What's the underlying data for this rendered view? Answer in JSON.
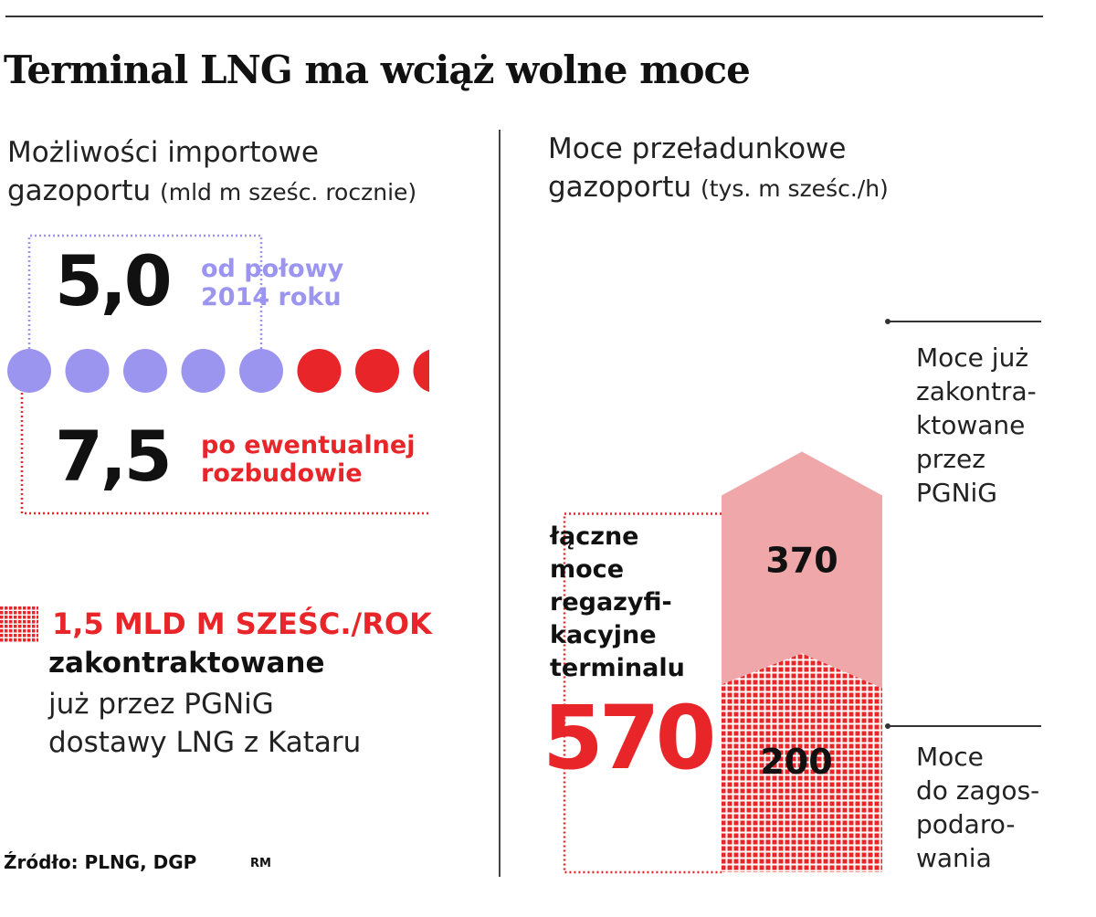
{
  "title": "Terminal LNG ma wciąż wolne moce",
  "left": {
    "subtitle_line1": "Możliwości importowe",
    "subtitle_line2": "gazoportu",
    "subtitle_unit": "(mld m sześc. rocznie)",
    "current": {
      "value": "5,0",
      "label_line1": "od połowy",
      "label_line2": "2014 roku"
    },
    "expanded": {
      "value": "7,5",
      "label_line1": "po ewentualnej",
      "label_line2": "rozbudowie"
    },
    "contract": {
      "headline": "1,5 MLD M SZEŚC./ROK",
      "line1": "zakontraktowane",
      "line2": "już przez PGNiG",
      "line3": "dostawy LNG z Kataru"
    },
    "source": "Źródło: PLNG, DGP",
    "author": "RM"
  },
  "right": {
    "subtitle_line1": "Moce przeładunkowe",
    "subtitle_line2": "gazoportu",
    "subtitle_unit": "(tys. m sześc./h)",
    "total_label": [
      "łączne",
      "moce",
      "regazyfi-",
      "kacyjne",
      "terminalu"
    ],
    "total_value": "570",
    "ann_top": [
      "Moce już",
      "zakontra-",
      "ktowane",
      "przez",
      "PGNiG"
    ],
    "ann_bottom": [
      "Moce",
      "do zagos-",
      "podaro-",
      "wania"
    ]
  },
  "colors": {
    "blue": "#9b95f0",
    "red": "#e8262a",
    "pink": "#f0a7a9",
    "dark": "#111111"
  },
  "chart_data": [
    {
      "type": "pictogram",
      "title": "Możliwości importowe gazoportu",
      "unit": "mld m sześc. rocznie",
      "dot_value": 1.0,
      "series": [
        {
          "name": "od połowy 2014 roku",
          "value": 5.0,
          "color": "#9b95f0"
        },
        {
          "name": "po ewentualnej rozbudowie",
          "value": 7.5,
          "color": "#e8262a"
        }
      ]
    },
    {
      "type": "bar",
      "stacked": true,
      "title": "Moce przeładunkowe gazoportu",
      "unit": "tys. m sześc./h",
      "total": 570,
      "segments": [
        {
          "name": "Moce do zagospodarowania",
          "value": 200,
          "style": "dotted-red"
        },
        {
          "name": "Moce już zakontraktowane przez PGNiG",
          "value": 370,
          "style": "pink"
        }
      ]
    }
  ]
}
